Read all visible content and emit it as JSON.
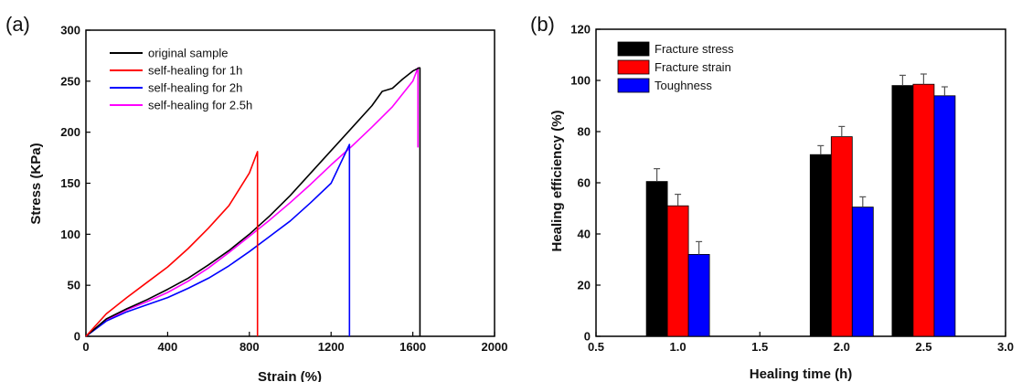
{
  "chart_data": [
    {
      "panel_label": "(a)",
      "type": "line",
      "xlabel": "Strain (%)",
      "ylabel": "Stress (KPa)",
      "xlim": [
        0,
        2000
      ],
      "ylim": [
        0,
        300
      ],
      "xticks": [
        "0",
        "400",
        "800",
        "1200",
        "1600",
        "2000"
      ],
      "yticks": [
        "0",
        "50",
        "100",
        "150",
        "200",
        "250",
        "300"
      ],
      "legend_position": "top-left",
      "grid": false,
      "series": [
        {
          "name": "original sample",
          "color": "#000000",
          "x": [
            0,
            100,
            200,
            300,
            400,
            500,
            600,
            700,
            800,
            900,
            1000,
            1100,
            1200,
            1300,
            1400,
            1450,
            1500,
            1550,
            1600,
            1630,
            1635,
            1635
          ],
          "y": [
            0,
            17,
            27,
            36,
            46,
            57,
            70,
            84,
            100,
            118,
            138,
            160,
            182,
            204,
            226,
            240,
            243,
            252,
            260,
            263,
            263,
            0
          ]
        },
        {
          "name": "self-healing for 1h",
          "color": "#ff0000",
          "x": [
            0,
            100,
            200,
            300,
            400,
            500,
            600,
            700,
            800,
            840,
            840
          ],
          "y": [
            0,
            22,
            38,
            53,
            68,
            86,
            106,
            128,
            160,
            181,
            0
          ]
        },
        {
          "name": "self-healing for 2h",
          "color": "#0000ff",
          "x": [
            0,
            100,
            200,
            300,
            400,
            500,
            600,
            700,
            800,
            900,
            1000,
            1100,
            1200,
            1290,
            1290
          ],
          "y": [
            0,
            15,
            24,
            31,
            38,
            47,
            57,
            69,
            83,
            98,
            113,
            131,
            150,
            188,
            0
          ]
        },
        {
          "name": "self-healing for 2.5h",
          "color": "#ff00ff",
          "x": [
            0,
            100,
            200,
            300,
            400,
            500,
            600,
            700,
            800,
            900,
            1000,
            1100,
            1200,
            1300,
            1400,
            1500,
            1600,
            1625,
            1625
          ],
          "y": [
            0,
            16,
            26,
            34,
            43,
            54,
            67,
            82,
            98,
            114,
            131,
            149,
            168,
            186,
            205,
            225,
            250,
            263,
            185
          ]
        }
      ]
    },
    {
      "panel_label": "(b)",
      "type": "bar",
      "xlabel": "Healing time (h)",
      "ylabel": "Healing efficiency (%)",
      "xlim": [
        0.5,
        3.0
      ],
      "ylim": [
        0,
        120
      ],
      "xticks": [
        "0.5",
        "1.0",
        "1.5",
        "2.0",
        "2.5",
        "3.0"
      ],
      "yticks": [
        "0",
        "20",
        "40",
        "60",
        "80",
        "100",
        "120"
      ],
      "legend_position": "top-left",
      "grid": false,
      "categories": [
        1.0,
        2.0,
        2.5
      ],
      "series": [
        {
          "name": "Fracture stress",
          "color": "#000000",
          "values": [
            60.5,
            71,
            98
          ],
          "errors": [
            5,
            3.5,
            4
          ]
        },
        {
          "name": "Fracture strain",
          "color": "#ff0000",
          "values": [
            51,
            78,
            98.5
          ],
          "errors": [
            4.5,
            4,
            4
          ]
        },
        {
          "name": "Toughness",
          "color": "#0000ff",
          "values": [
            32,
            50.5,
            94
          ],
          "errors": [
            5,
            4,
            3.5
          ]
        }
      ]
    }
  ]
}
